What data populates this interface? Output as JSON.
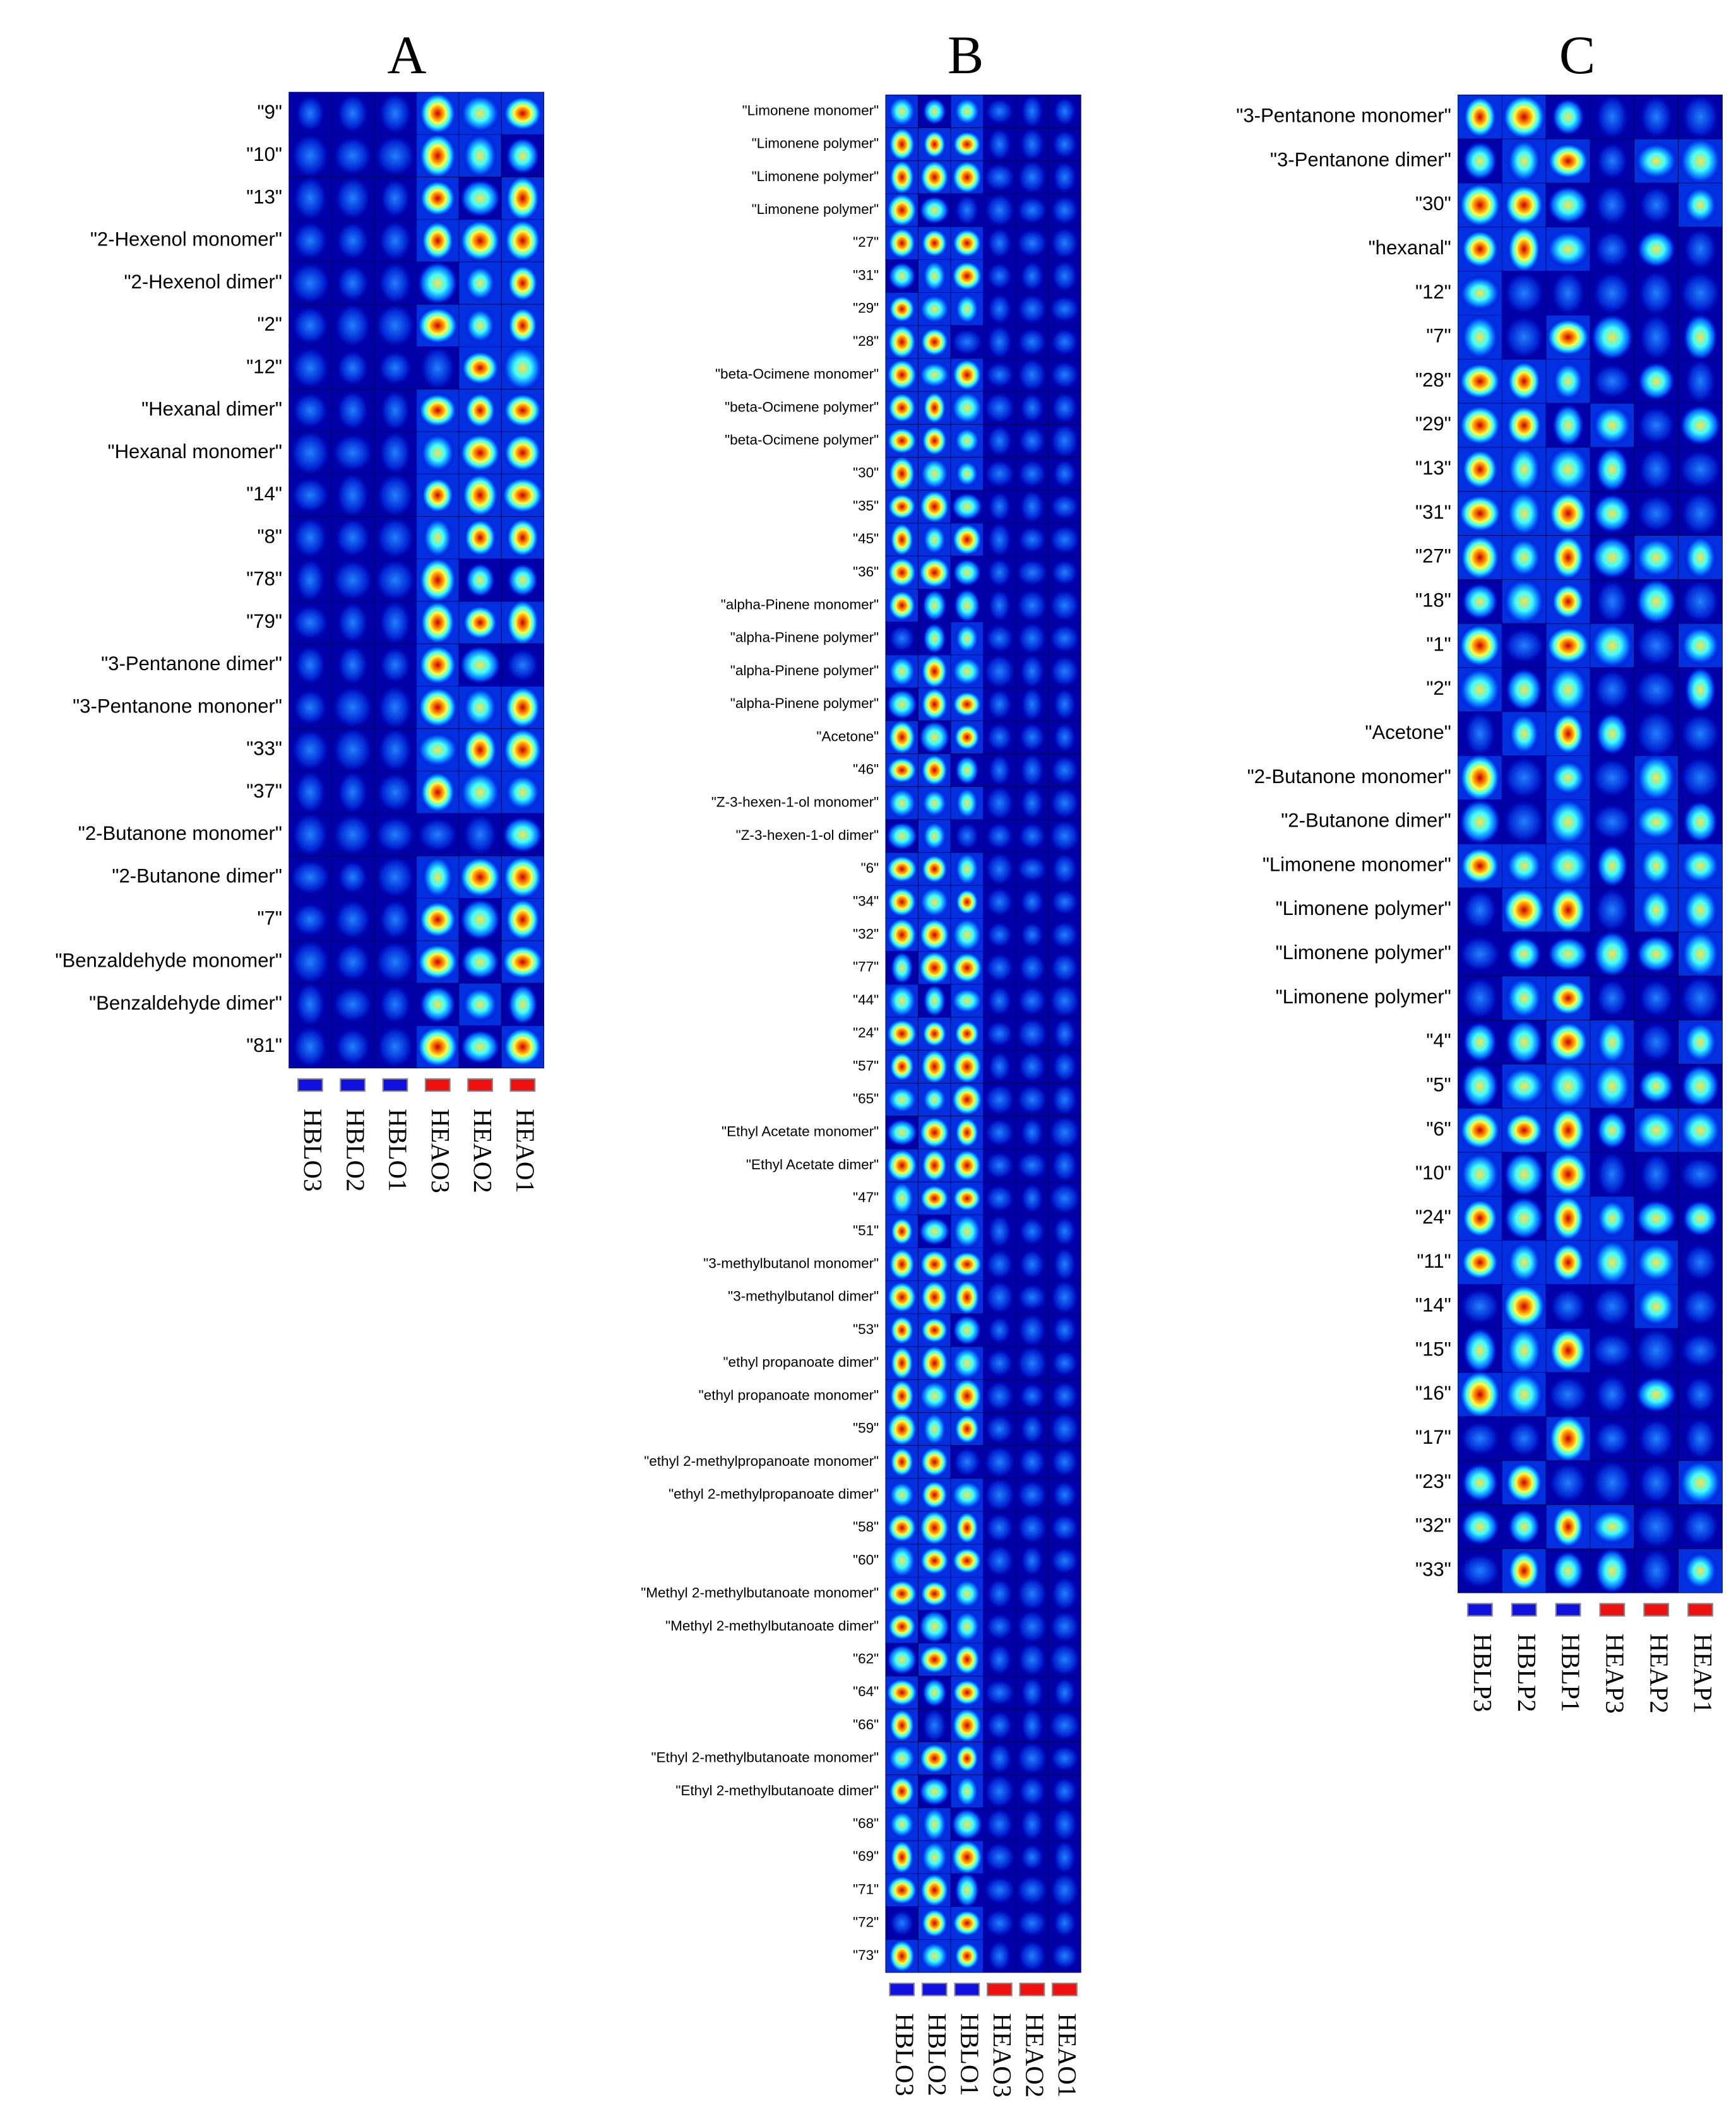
{
  "panels": [
    {
      "title": "A",
      "rows": [
        "\"9\"",
        "\"10\"",
        "\"13\"",
        "\"2-Hexenol monomer\"",
        "\"2-Hexenol dimer\"",
        "\"2\"",
        "\"12\"",
        "\"Hexanal dimer\"",
        "\"Hexanal monomer\"",
        "\"14\"",
        "\"8\"",
        "\"78\"",
        "\"79\"",
        "\"3-Pentanone dimer\"",
        "\"3-Pentanone mononer\"",
        "\"33\"",
        "\"37\"",
        "\"2-Butanone monomer\"",
        "\"2-Butanone dimer\"",
        "\"7\"",
        "\"Benzaldehyde monomer\"",
        "\"Benzaldehyde dimer\"",
        "\"81\""
      ],
      "columns": [
        "HBLO3",
        "HBLO2",
        "HBLO1",
        "HEAO3",
        "HEAO2",
        "HEAO1"
      ]
    },
    {
      "title": "B",
      "rows": [
        "\"Limonene monomer\"",
        "\"Limonene polymer\"",
        "\"Limonene polymer\"",
        "\"Limonene polymer\"",
        "\"27\"",
        "\"31\"",
        "\"29\"",
        "\"28\"",
        "\"beta-Ocimene monomer\"",
        "\"beta-Ocimene polymer\"",
        "\"beta-Ocimene polymer\"",
        "\"30\"",
        "\"35\"",
        "\"45\"",
        "\"36\"",
        "\"alpha-Pinene monomer\"",
        "\"alpha-Pinene polymer\"",
        "\"alpha-Pinene polymer\"",
        "\"alpha-Pinene polymer\"",
        "\"Acetone\"",
        "\"46\"",
        "\"Z-3-hexen-1-ol monomer\"",
        "\"Z-3-hexen-1-ol dimer\"",
        "\"6\"",
        "\"34\"",
        "\"32\"",
        "\"77\"",
        "\"44\"",
        "\"24\"",
        "\"57\"",
        "\"65\"",
        "\"Ethyl Acetate monomer\"",
        "\"Ethyl Acetate dimer\"",
        "\"47\"",
        "\"51\"",
        "\"3-methylbutanol monomer\"",
        "\"3-methylbutanol dimer\"",
        "\"53\"",
        "\"ethyl propanoate dimer\"",
        "\"ethyl propanoate monomer\"",
        "\"59\"",
        "\"ethyl 2-methylpropanoate monomer\"",
        "\"ethyl 2-methylpropanoate dimer\"",
        "\"58\"",
        "\"60\"",
        "\"Methyl 2-methylbutanoate monomer\"",
        "\"Methyl 2-methylbutanoate dimer\"",
        "\"62\"",
        "\"64\"",
        "\"66\"",
        "\"Ethyl 2-methylbutanoate monomer\"",
        "\"Ethyl 2-methylbutanoate dimer\"",
        "\"68\"",
        "\"69\"",
        "\"71\"",
        "\"72\"",
        "\"73\""
      ],
      "columns": [
        "HBLO3",
        "HBLO2",
        "HBLO1",
        "HEAO3",
        "HEAO2",
        "HEAO1"
      ]
    },
    {
      "title": "C",
      "rows": [
        "\"3-Pentanone monomer\"",
        "\"3-Pentanone dimer\"",
        "\"30\"",
        "\"hexanal\"",
        "\"12\"",
        "\"7\"",
        "\"28\"",
        "\"29\"",
        "\"13\"",
        "\"31\"",
        "\"27\"",
        "\"18\"",
        "\"1\"",
        "\"2\"",
        "\"Acetone\"",
        "\"2-Butanone monomer\"",
        "\"2-Butanone dimer\"",
        "\"Limonene monomer\"",
        "\"Limonene polymer\"",
        "\"Limonene polymer\"",
        "\"Limonene polymer\"",
        "\"4\"",
        "\"5\"",
        "\"6\"",
        "\"10\"",
        "\"24\"",
        "\"11\"",
        "\"14\"",
        "\"15\"",
        "\"16\"",
        "\"17\"",
        "\"23\"",
        "\"32\"",
        "\"33\""
      ],
      "columns": [
        "HBLP3",
        "HBLP2",
        "HBLP1",
        "HEAP3",
        "HEAP2",
        "HEAP1"
      ]
    }
  ]
}
